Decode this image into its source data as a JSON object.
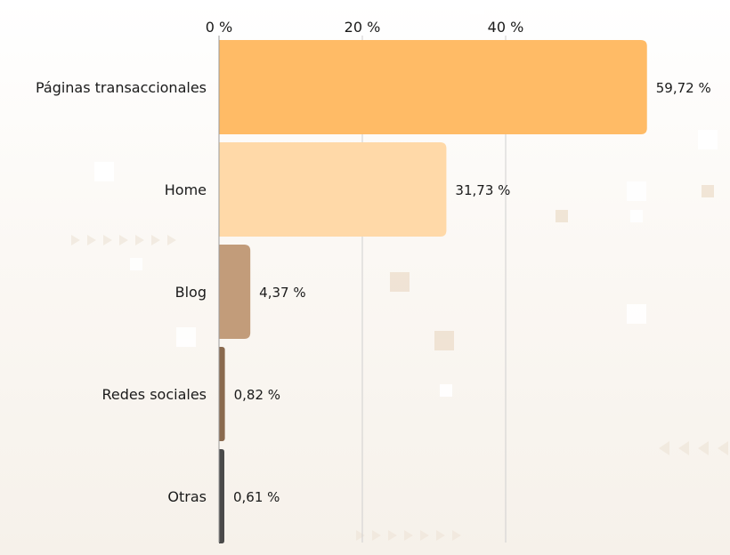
{
  "chart_data": {
    "type": "bar",
    "orientation": "horizontal",
    "categories": [
      "Páginas transaccionales",
      "Home",
      "Blog",
      "Redes sociales",
      "Otras"
    ],
    "values": [
      59.72,
      31.73,
      4.37,
      0.82,
      0.61
    ],
    "value_labels": [
      "59,72 %",
      "31,73 %",
      "4,37 %",
      "0,82 %",
      "0,61 %"
    ],
    "bar_colors": [
      "#ffbb66",
      "#ffd9a8",
      "#c29c7a",
      "#8a6a4e",
      "#4a4a4a"
    ],
    "xticks": [
      0,
      20,
      40
    ],
    "xtick_labels": [
      "0 %",
      "20 %",
      "40 %"
    ],
    "xlim": [
      0,
      60
    ],
    "x_axis_position": "top",
    "grid": true,
    "title": "",
    "xlabel": "",
    "ylabel": ""
  }
}
